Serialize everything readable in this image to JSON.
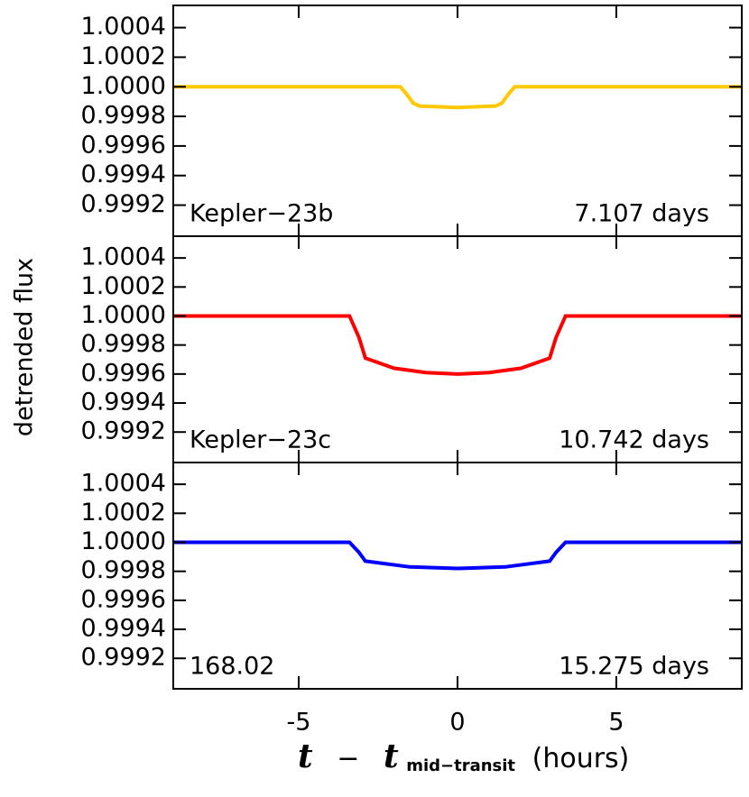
{
  "figure": {
    "ylabel": "detrended flux",
    "xlabel_t": "t",
    "xlabel_minus": "−",
    "xlabel_sub": "mid−transit",
    "xlabel_unit": "(hours)"
  },
  "chart_data": [
    {
      "type": "line",
      "annotation_left": "Kepler−23b",
      "annotation_right": "7.107 days",
      "xlim": [
        -8.95,
        8.95
      ],
      "xticks": [
        -5,
        0,
        5
      ],
      "ylim": [
        0.99899,
        1.00055
      ],
      "yticks": [
        {
          "value": 0.9992,
          "label": "0.9992"
        },
        {
          "value": 0.9994,
          "label": "0.9994"
        },
        {
          "value": 0.9996,
          "label": "0.9996"
        },
        {
          "value": 0.9998,
          "label": "0.9998"
        },
        {
          "value": 1.0,
          "label": "1.0000"
        },
        {
          "value": 1.0002,
          "label": "1.0002"
        },
        {
          "value": 1.0004,
          "label": "1.0004"
        }
      ],
      "series": [
        {
          "color": "#ffc800",
          "x": [
            -8.95,
            -1.8,
            -1.6,
            -1.4,
            -1.2,
            0,
            1.2,
            1.4,
            1.6,
            1.8,
            8.95
          ],
          "values": [
            1.0,
            1.0,
            0.99995,
            0.99989,
            0.99987,
            0.99986,
            0.99987,
            0.99989,
            0.99995,
            1.0,
            1.0
          ]
        }
      ]
    },
    {
      "type": "line",
      "annotation_left": "Kepler−23c",
      "annotation_right": "10.742 days",
      "xlim": [
        -8.95,
        8.95
      ],
      "xticks": [
        -5,
        0,
        5
      ],
      "ylim": [
        0.99899,
        1.00055
      ],
      "yticks": [
        {
          "value": 0.9992,
          "label": "0.9992"
        },
        {
          "value": 0.9994,
          "label": "0.9994"
        },
        {
          "value": 0.9996,
          "label": "0.9996"
        },
        {
          "value": 0.9998,
          "label": "0.9998"
        },
        {
          "value": 1.0,
          "label": "1.0000"
        },
        {
          "value": 1.0002,
          "label": "1.0002"
        },
        {
          "value": 1.0004,
          "label": "1.0004"
        }
      ],
      "series": [
        {
          "color": "#ff0000",
          "x": [
            -8.95,
            -3.4,
            -3.1,
            -2.9,
            -2,
            -1,
            0,
            1,
            2,
            2.9,
            3.1,
            3.4,
            8.95
          ],
          "values": [
            1.0,
            1.0,
            0.99985,
            0.99971,
            0.99964,
            0.99961,
            0.9996,
            0.99961,
            0.99964,
            0.99971,
            0.99985,
            1.0,
            1.0
          ]
        }
      ]
    },
    {
      "type": "line",
      "annotation_left": "168.02",
      "annotation_right": "15.275 days",
      "xlim": [
        -8.95,
        8.95
      ],
      "xticks": [
        -5,
        0,
        5
      ],
      "xticklabels": true,
      "ylim": [
        0.99899,
        1.00055
      ],
      "yticks": [
        {
          "value": 0.9992,
          "label": "0.9992"
        },
        {
          "value": 0.9994,
          "label": "0.9994"
        },
        {
          "value": 0.9996,
          "label": "0.9996"
        },
        {
          "value": 0.9998,
          "label": "0.9998"
        },
        {
          "value": 1.0,
          "label": "1.0000"
        },
        {
          "value": 1.0002,
          "label": "1.0002"
        },
        {
          "value": 1.0004,
          "label": "1.0004"
        }
      ],
      "series": [
        {
          "color": "#0000ff",
          "x": [
            -8.95,
            -3.4,
            -3.1,
            -2.9,
            -1.5,
            0,
            1.5,
            2.9,
            3.1,
            3.4,
            8.95
          ],
          "values": [
            1.0,
            1.0,
            0.99993,
            0.99987,
            0.99983,
            0.99982,
            0.99983,
            0.99987,
            0.99993,
            1.0,
            1.0
          ]
        }
      ]
    }
  ]
}
